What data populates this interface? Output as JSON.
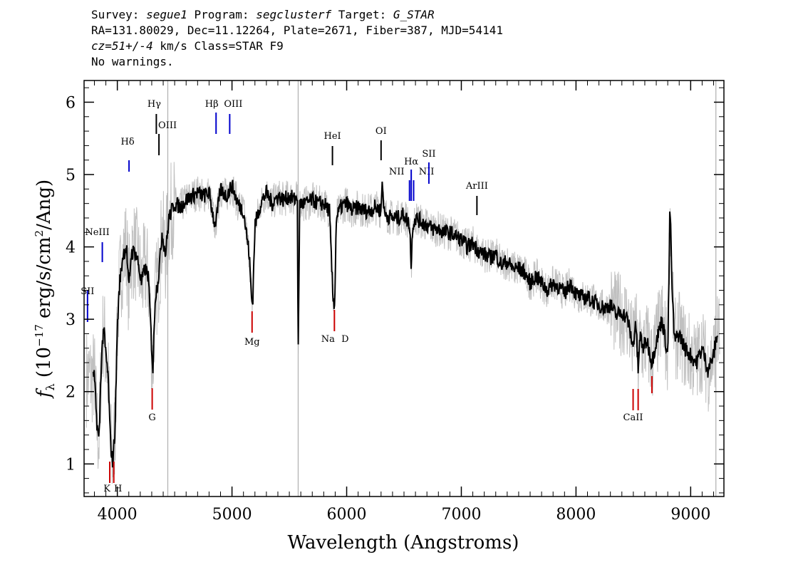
{
  "header": {
    "line1": {
      "survey_label": "Survey: ",
      "survey": "segue1",
      "program_label": " Program: ",
      "program": "segclusterf",
      "target_label": " Target: ",
      "target": "G_STAR"
    },
    "line2": "RA=131.80029, Dec=11.12264, Plate=2671, Fiber=387, MJD=54141",
    "line3": {
      "cz": "cz=51+/-4",
      "rest": " km/s Class=STAR F9"
    },
    "line4": "No warnings."
  },
  "chart_data": {
    "type": "line",
    "xlabel": "Wavelength (Angstroms)",
    "ylabel": "f_λ (10^-17 erg/s/cm²/Ang)",
    "xlim": [
      3710,
      9290
    ],
    "ylim": [
      0.55,
      6.3
    ],
    "xticks": [
      4000,
      5000,
      6000,
      7000,
      8000,
      9000
    ],
    "yticks": [
      1,
      2,
      3,
      4,
      5,
      6
    ],
    "series": [
      {
        "role": "smoothed",
        "color": "#000000",
        "points": [
          [
            3800,
            2.2
          ],
          [
            3820,
            1.6
          ],
          [
            3840,
            1.3
          ],
          [
            3860,
            2.4
          ],
          [
            3880,
            2.9
          ],
          [
            3900,
            2.5
          ],
          [
            3920,
            2.2
          ],
          [
            3940,
            1.3
          ],
          [
            3960,
            1.0
          ],
          [
            3980,
            1.5
          ],
          [
            4000,
            2.9
          ],
          [
            4020,
            3.5
          ],
          [
            4050,
            3.9
          ],
          [
            4080,
            4.0
          ],
          [
            4100,
            3.4
          ],
          [
            4120,
            3.9
          ],
          [
            4150,
            3.95
          ],
          [
            4180,
            3.8
          ],
          [
            4210,
            3.5
          ],
          [
            4240,
            3.7
          ],
          [
            4270,
            3.6
          ],
          [
            4300,
            2.6
          ],
          [
            4310,
            2.3
          ],
          [
            4330,
            3.3
          ],
          [
            4360,
            3.6
          ],
          [
            4390,
            4.2
          ],
          [
            4420,
            3.9
          ],
          [
            4450,
            4.4
          ],
          [
            4500,
            4.6
          ],
          [
            4550,
            4.55
          ],
          [
            4600,
            4.65
          ],
          [
            4650,
            4.7
          ],
          [
            4700,
            4.75
          ],
          [
            4750,
            4.7
          ],
          [
            4800,
            4.75
          ],
          [
            4850,
            4.3
          ],
          [
            4870,
            4.45
          ],
          [
            4900,
            4.8
          ],
          [
            4950,
            4.7
          ],
          [
            5000,
            4.85
          ],
          [
            5050,
            4.6
          ],
          [
            5100,
            4.5
          ],
          [
            5150,
            3.9
          ],
          [
            5170,
            3.3
          ],
          [
            5180,
            3.2
          ],
          [
            5200,
            4.3
          ],
          [
            5250,
            4.6
          ],
          [
            5300,
            4.75
          ],
          [
            5350,
            4.6
          ],
          [
            5400,
            4.7
          ],
          [
            5450,
            4.65
          ],
          [
            5500,
            4.7
          ],
          [
            5550,
            4.65
          ],
          [
            5570,
            4.7
          ],
          [
            5577,
            2.4
          ],
          [
            5590,
            4.6
          ],
          [
            5650,
            4.6
          ],
          [
            5700,
            4.65
          ],
          [
            5750,
            4.6
          ],
          [
            5800,
            4.6
          ],
          [
            5850,
            4.5
          ],
          [
            5880,
            3.3
          ],
          [
            5895,
            3.2
          ],
          [
            5910,
            4.4
          ],
          [
            5950,
            4.55
          ],
          [
            6000,
            4.6
          ],
          [
            6050,
            4.5
          ],
          [
            6100,
            4.55
          ],
          [
            6150,
            4.5
          ],
          [
            6200,
            4.5
          ],
          [
            6250,
            4.55
          ],
          [
            6300,
            4.5
          ],
          [
            6310,
            4.9
          ],
          [
            6330,
            4.45
          ],
          [
            6400,
            4.4
          ],
          [
            6450,
            4.4
          ],
          [
            6500,
            4.45
          ],
          [
            6550,
            4.3
          ],
          [
            6563,
            3.7
          ],
          [
            6575,
            4.3
          ],
          [
            6600,
            4.4
          ],
          [
            6650,
            4.35
          ],
          [
            6700,
            4.3
          ],
          [
            6750,
            4.25
          ],
          [
            6800,
            4.25
          ],
          [
            6850,
            4.2
          ],
          [
            6900,
            4.2
          ],
          [
            6950,
            4.15
          ],
          [
            7000,
            4.1
          ],
          [
            7050,
            4.0
          ],
          [
            7100,
            4.05
          ],
          [
            7150,
            3.95
          ],
          [
            7200,
            3.9
          ],
          [
            7250,
            3.85
          ],
          [
            7300,
            3.9
          ],
          [
            7350,
            3.75
          ],
          [
            7400,
            3.8
          ],
          [
            7450,
            3.7
          ],
          [
            7500,
            3.7
          ],
          [
            7550,
            3.65
          ],
          [
            7600,
            3.5
          ],
          [
            7650,
            3.6
          ],
          [
            7700,
            3.5
          ],
          [
            7750,
            3.4
          ],
          [
            7800,
            3.5
          ],
          [
            7850,
            3.45
          ],
          [
            7900,
            3.35
          ],
          [
            7950,
            3.5
          ],
          [
            8000,
            3.35
          ],
          [
            8050,
            3.3
          ],
          [
            8100,
            3.3
          ],
          [
            8150,
            3.25
          ],
          [
            8200,
            3.2
          ],
          [
            8250,
            3.15
          ],
          [
            8300,
            3.2
          ],
          [
            8350,
            3.05
          ],
          [
            8400,
            3.1
          ],
          [
            8450,
            3.0
          ],
          [
            8498,
            2.6
          ],
          [
            8520,
            3.0
          ],
          [
            8542,
            2.3
          ],
          [
            8560,
            2.8
          ],
          [
            8580,
            2.6
          ],
          [
            8620,
            2.7
          ],
          [
            8662,
            2.4
          ],
          [
            8700,
            2.7
          ],
          [
            8750,
            3.0
          ],
          [
            8800,
            2.5
          ],
          [
            8820,
            4.6
          ],
          [
            8840,
            3.3
          ],
          [
            8860,
            2.7
          ],
          [
            8900,
            2.8
          ],
          [
            8950,
            2.6
          ],
          [
            9000,
            2.5
          ],
          [
            9050,
            2.4
          ],
          [
            9100,
            2.6
          ],
          [
            9150,
            2.3
          ],
          [
            9200,
            2.5
          ],
          [
            9230,
            2.8
          ]
        ]
      }
    ],
    "emission_lines": [
      {
        "label": "SII",
        "x": 3740,
        "color": "#0000cc"
      },
      {
        "label": "NeIII",
        "x": 3869,
        "color": "#0000cc"
      },
      {
        "label": "Hδ",
        "x": 4102,
        "color": "#0000cc"
      },
      {
        "label": "Hγ",
        "x": 4340,
        "color": "#000000"
      },
      {
        "label": "OIII",
        "x": 4363,
        "color": "#000000"
      },
      {
        "label": "Hβ",
        "x": 4861,
        "color": "#0000cc"
      },
      {
        "label": "OIII",
        "x": 4980,
        "color": "#0000cc"
      },
      {
        "label": "HeI",
        "x": 5876,
        "color": "#000000"
      },
      {
        "label": "OI",
        "x": 6300,
        "color": "#000000"
      },
      {
        "label": "NII",
        "x": 6548,
        "color": "#0000cc"
      },
      {
        "label": "Hα",
        "x": 6563,
        "color": "#0000cc"
      },
      {
        "label": "NII",
        "x": 6584,
        "color": "#0000cc"
      },
      {
        "label": "SII",
        "x": 6717,
        "color": "#0000cc"
      },
      {
        "label": "ArIII",
        "x": 7136,
        "color": "#000000"
      }
    ],
    "absorption_lines": [
      {
        "label": "K",
        "x": 3934,
        "color": "#cc0000"
      },
      {
        "label": "H",
        "x": 3969,
        "color": "#cc0000"
      },
      {
        "label": "G",
        "x": 4304,
        "color": "#cc0000"
      },
      {
        "label": "Mg",
        "x": 5175,
        "color": "#cc0000"
      },
      {
        "label": "Na",
        "x": 5893,
        "color": "#cc0000"
      },
      {
        "label": "D",
        "x": 5893,
        "color": "#cc0000"
      },
      {
        "label": "CaII",
        "x": 8498,
        "color": "#cc0000"
      },
      {
        "label": "CaII",
        "x": 8542,
        "color": "#cc0000"
      },
      {
        "label": "CaII",
        "x": 8662,
        "color": "#cc0000"
      }
    ]
  }
}
